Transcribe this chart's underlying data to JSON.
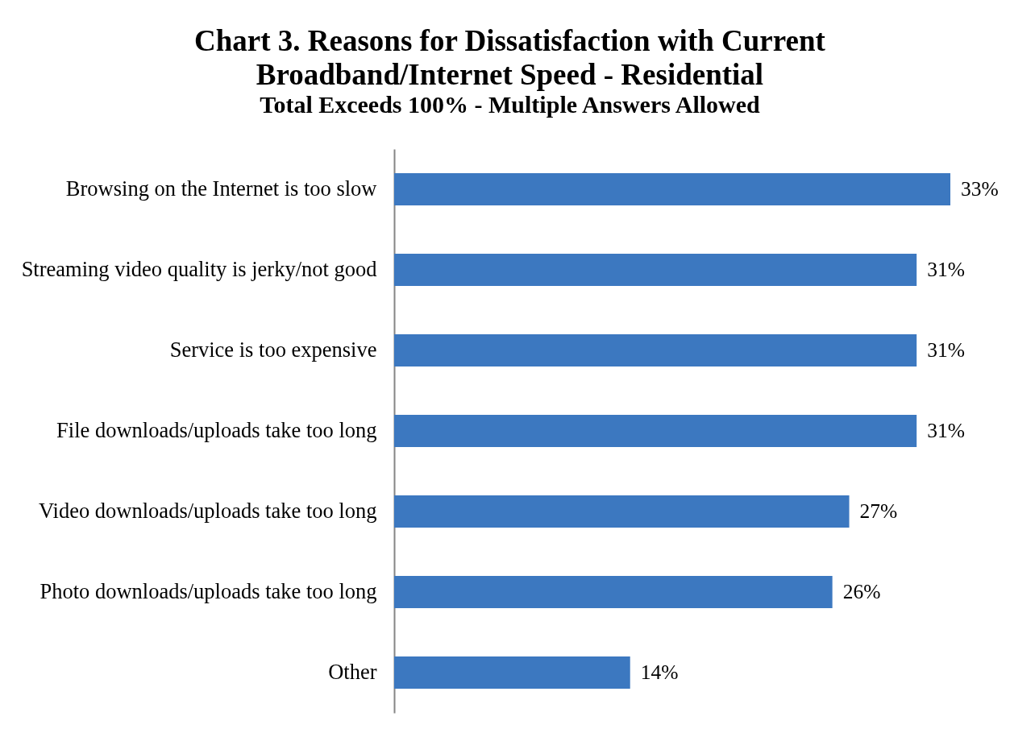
{
  "chart_data": {
    "type": "bar",
    "orientation": "horizontal",
    "title": "Chart 3. Reasons for Dissatisfaction with Current\nBroadband/Internet Speed - Residential",
    "subtitle": "Total Exceeds 100% - Multiple Answers Allowed",
    "categories": [
      "Browsing on the Internet is too slow",
      "Streaming video quality is jerky/not good",
      "Service is too expensive",
      "File downloads/uploads take too long",
      "Video downloads/uploads take too long",
      "Photo downloads/uploads take too long",
      "Other"
    ],
    "values": [
      33,
      31,
      31,
      31,
      27,
      26,
      14
    ],
    "value_labels": [
      "33%",
      "31%",
      "31%",
      "31%",
      "27%",
      "26%",
      "14%"
    ],
    "color": "#3c78c0",
    "tick_labels": "y"
  }
}
